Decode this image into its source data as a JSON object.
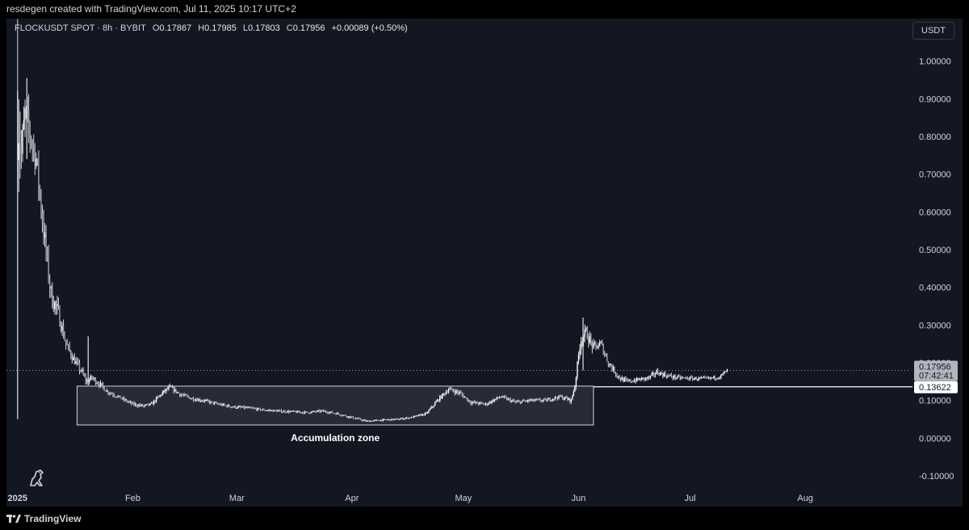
{
  "header": {
    "caption": "resdegen created with TradingView.com, Jul 11, 2025 10:17 UTC+2"
  },
  "legend": {
    "symbol": "FLOCKUSDT SPOT · 8h · BYBIT",
    "open_label": "O",
    "open": "0.17867",
    "high_label": "H",
    "high": "0.17985",
    "low_label": "L",
    "low": "0.17803",
    "close_label": "C",
    "close": "0.17956",
    "change": "+0.00089 (+0.50%)"
  },
  "currency": "USDT",
  "brand": {
    "name": "TradingView",
    "icon": "tradingview-logo-icon"
  },
  "watermark_icon": "dinosaur-icon",
  "colors": {
    "background": "#131722",
    "candles": "#d1d4dc",
    "zone_fill": "#3a3d47",
    "support_line": "#ffffff",
    "price_label_bg": "#b2b5be"
  },
  "chart_data": {
    "type": "candlestick",
    "ylim": [
      -0.13,
      1.07
    ],
    "yticks": [
      1.0,
      0.9,
      0.8,
      0.7,
      0.6,
      0.5,
      0.4,
      0.3,
      0.2,
      0.1,
      0.0,
      -0.1
    ],
    "ytick_labels": [
      "1.00000",
      "0.90000",
      "0.80000",
      "0.70000",
      "0.60000",
      "0.50000",
      "0.40000",
      "0.30000",
      "0.20000",
      "0.10000",
      "0.00000",
      "-0.10000"
    ],
    "x_range_days": [
      -3,
      240
    ],
    "x_ticks": [
      {
        "label": "2025",
        "day": 0,
        "bold": true
      },
      {
        "label": "Feb",
        "day": 31
      },
      {
        "label": "Mar",
        "day": 59
      },
      {
        "label": "Apr",
        "day": 90
      },
      {
        "label": "May",
        "day": 120
      },
      {
        "label": "Jun",
        "day": 151
      },
      {
        "label": "Jul",
        "day": 181
      },
      {
        "label": "Aug",
        "day": 212
      }
    ],
    "anchors": [
      [
        0,
        0.92,
        0.26
      ],
      [
        1,
        0.75,
        0.08
      ],
      [
        2,
        0.86,
        0.06
      ],
      [
        3,
        0.82,
        0.06
      ],
      [
        5,
        0.74,
        0.05
      ],
      [
        7,
        0.55,
        0.05
      ],
      [
        9,
        0.38,
        0.04
      ],
      [
        11,
        0.33,
        0.03
      ],
      [
        13,
        0.25,
        0.02
      ],
      [
        15,
        0.21,
        0.015
      ],
      [
        17,
        0.18,
        0.015
      ],
      [
        18.5,
        0.15,
        0.01
      ],
      [
        20,
        0.16,
        0.012
      ],
      [
        22,
        0.145,
        0.01
      ],
      [
        24,
        0.125,
        0.008
      ],
      [
        26,
        0.115,
        0.007
      ],
      [
        28,
        0.105,
        0.006
      ],
      [
        31,
        0.09,
        0.006
      ],
      [
        34,
        0.085,
        0.006
      ],
      [
        36,
        0.09,
        0.006
      ],
      [
        39,
        0.12,
        0.008
      ],
      [
        41,
        0.135,
        0.008
      ],
      [
        44,
        0.115,
        0.007
      ],
      [
        47,
        0.105,
        0.006
      ],
      [
        50,
        0.1,
        0.006
      ],
      [
        54,
        0.09,
        0.005
      ],
      [
        58,
        0.083,
        0.005
      ],
      [
        62,
        0.08,
        0.005
      ],
      [
        66,
        0.075,
        0.004
      ],
      [
        70,
        0.072,
        0.004
      ],
      [
        74,
        0.07,
        0.004
      ],
      [
        78,
        0.068,
        0.004
      ],
      [
        82,
        0.072,
        0.004
      ],
      [
        86,
        0.065,
        0.004
      ],
      [
        90,
        0.055,
        0.004
      ],
      [
        94,
        0.045,
        0.003
      ],
      [
        98,
        0.048,
        0.003
      ],
      [
        102,
        0.05,
        0.003
      ],
      [
        106,
        0.055,
        0.003
      ],
      [
        110,
        0.065,
        0.004
      ],
      [
        113,
        0.1,
        0.007
      ],
      [
        116,
        0.13,
        0.008
      ],
      [
        119,
        0.12,
        0.008
      ],
      [
        122,
        0.095,
        0.006
      ],
      [
        126,
        0.09,
        0.006
      ],
      [
        130,
        0.11,
        0.006
      ],
      [
        134,
        0.095,
        0.006
      ],
      [
        138,
        0.1,
        0.006
      ],
      [
        142,
        0.1,
        0.006
      ],
      [
        146,
        0.11,
        0.006
      ],
      [
        149,
        0.1,
        0.008
      ],
      [
        150,
        0.14,
        0.01
      ],
      [
        151.5,
        0.26,
        0.02
      ],
      [
        153,
        0.28,
        0.02
      ],
      [
        155,
        0.24,
        0.018
      ],
      [
        157,
        0.25,
        0.015
      ],
      [
        159,
        0.2,
        0.012
      ],
      [
        162,
        0.16,
        0.01
      ],
      [
        164,
        0.15,
        0.008
      ],
      [
        167,
        0.155,
        0.008
      ],
      [
        170,
        0.16,
        0.008
      ],
      [
        172,
        0.175,
        0.009
      ],
      [
        175,
        0.165,
        0.008
      ],
      [
        178,
        0.16,
        0.007
      ],
      [
        182,
        0.158,
        0.006
      ],
      [
        186,
        0.158,
        0.006
      ],
      [
        189,
        0.163,
        0.006
      ],
      [
        191,
        0.18,
        0.006
      ]
    ],
    "spikes": [
      [
        0,
        0.05,
        0.92
      ],
      [
        2.5,
        0.74,
        0.955
      ],
      [
        19,
        0.14,
        0.27
      ],
      [
        152.2,
        0.18,
        0.32
      ]
    ],
    "last_close": 0.17956,
    "annotations": {
      "box": {
        "x_start_day": 16,
        "x_end_day": 155,
        "y_bottom": 0.035,
        "y_top": 0.138
      },
      "box_label": "Accumulation zone",
      "support_line": {
        "x_start_day": 155,
        "value": 0.13622,
        "label": "0.13622"
      },
      "price_label": {
        "value": "0.17956",
        "countdown": "07:42:41"
      }
    }
  }
}
